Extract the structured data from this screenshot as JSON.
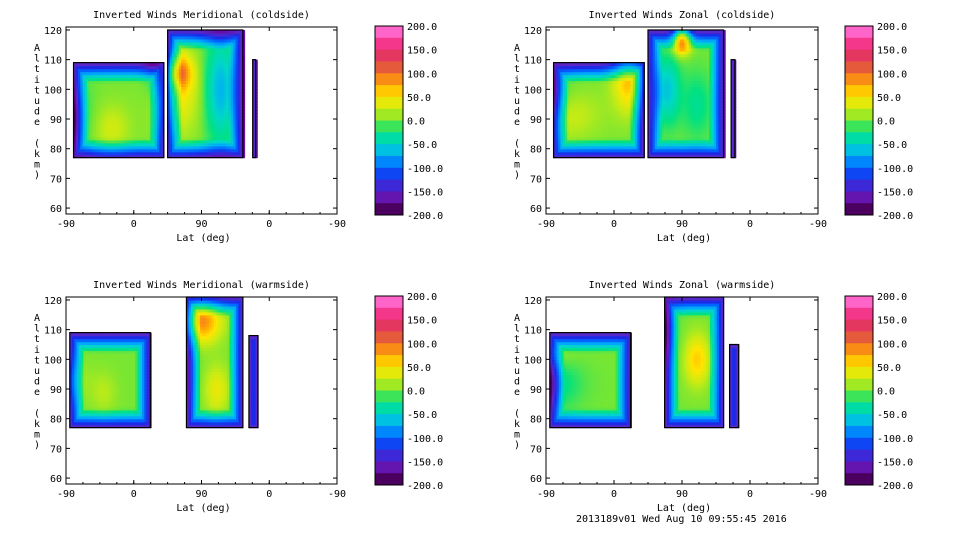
{
  "footer": "2013189v01 Wed Aug 10 09:55:45 2016",
  "chart_data": [
    {
      "type": "heatmap",
      "title": "Inverted Winds Meridional (coldside)",
      "xlabel": "Lat (deg)",
      "ylabel": "Altitude (km)",
      "x_ticks": [
        "-90",
        "0",
        "90",
        "0",
        "-90"
      ],
      "y_ticks": [
        60,
        70,
        80,
        90,
        100,
        110,
        120
      ],
      "ylim": [
        58,
        121
      ],
      "colorbar_ticks": [
        "200.0",
        "150.0",
        "100.0",
        "50.0",
        "0.0",
        "-50.0",
        "-100.0",
        "-150.0",
        "-200.0"
      ],
      "colorbar_range": [
        -200,
        200
      ],
      "blobs": [
        {
          "x": -60,
          "y": 97,
          "v": -20,
          "sx": 25,
          "sy": 9
        },
        {
          "x": 60,
          "y": 87,
          "v": 30,
          "sx": 18,
          "sy": 6
        },
        {
          "x": -10,
          "y": 90,
          "v": -60,
          "sx": 25,
          "sy": 8
        },
        {
          "x": 145,
          "y": 99,
          "v": 50,
          "sx": 22,
          "sy": 10
        },
        {
          "x": 150,
          "y": 106,
          "v": 80,
          "sx": 12,
          "sy": 4
        },
        {
          "x": 205,
          "y": 100,
          "v": -70,
          "sx": 14,
          "sy": 12
        },
        {
          "x": 120,
          "y": 108,
          "v": -40,
          "sx": 12,
          "sy": 8
        }
      ]
    },
    {
      "type": "heatmap",
      "title": "Inverted Winds Zonal (coldside)",
      "xlabel": "Lat (deg)",
      "ylabel": "Altitude (km)",
      "x_ticks": [
        "-90",
        "0",
        "90",
        "0",
        "-90"
      ],
      "y_ticks": [
        60,
        70,
        80,
        90,
        100,
        110,
        120
      ],
      "ylim": [
        58,
        121
      ],
      "colorbar_ticks": [
        "200.0",
        "150.0",
        "100.0",
        "50.0",
        "0.0",
        "-50.0",
        "-100.0",
        "-150.0",
        "-200.0"
      ],
      "colorbar_range": [
        -200,
        200
      ],
      "blobs": [
        {
          "x": -50,
          "y": 84,
          "v": 60,
          "sx": 30,
          "sy": 5
        },
        {
          "x": 30,
          "y": 92,
          "v": 30,
          "sx": 30,
          "sy": 6
        },
        {
          "x": -20,
          "y": 98,
          "v": -60,
          "sx": 30,
          "sy": 6
        },
        {
          "x": 110,
          "y": 104,
          "v": 70,
          "sx": 15,
          "sy": 8
        },
        {
          "x": 180,
          "y": 117,
          "v": 160,
          "sx": 8,
          "sy": 3
        },
        {
          "x": 160,
          "y": 100,
          "v": -60,
          "sx": 12,
          "sy": 8
        },
        {
          "x": 200,
          "y": 95,
          "v": -30,
          "sx": 14,
          "sy": 8
        }
      ]
    },
    {
      "type": "heatmap",
      "title": "Inverted Winds Meridional (warmside)",
      "xlabel": "Lat (deg)",
      "ylabel": "Altitude (km)",
      "x_ticks": [
        "-90",
        "0",
        "90",
        "0",
        "-90"
      ],
      "y_ticks": [
        60,
        70,
        80,
        90,
        100,
        110,
        120
      ],
      "ylim": [
        58,
        121
      ],
      "colorbar_ticks": [
        "200.0",
        "150.0",
        "100.0",
        "50.0",
        "0.0",
        "-50.0",
        "-100.0",
        "-150.0",
        "-200.0"
      ],
      "colorbar_range": [
        -200,
        200
      ],
      "blobs": [
        {
          "x": -10,
          "y": 93,
          "v": 40,
          "sx": 22,
          "sy": 5
        },
        {
          "x": 50,
          "y": 89,
          "v": 20,
          "sx": 12,
          "sy": 5
        },
        {
          "x": -60,
          "y": 95,
          "v": -50,
          "sx": 20,
          "sy": 8
        },
        {
          "x": 180,
          "y": 113,
          "v": 90,
          "sx": 18,
          "sy": 5
        },
        {
          "x": 150,
          "y": 95,
          "v": -20,
          "sx": 15,
          "sy": 8
        },
        {
          "x": 200,
          "y": 90,
          "v": 40,
          "sx": 12,
          "sy": 6
        }
      ]
    },
    {
      "type": "heatmap",
      "title": "Inverted Winds Zonal (warmside)",
      "xlabel": "Lat (deg)",
      "ylabel": "Altitude (km)",
      "x_ticks": [
        "-90",
        "0",
        "90",
        "0",
        "-90"
      ],
      "y_ticks": [
        60,
        70,
        80,
        90,
        100,
        110,
        120
      ],
      "ylim": [
        58,
        121
      ],
      "colorbar_ticks": [
        "200.0",
        "150.0",
        "100.0",
        "50.0",
        "0.0",
        "-50.0",
        "-100.0",
        "-150.0",
        "-200.0"
      ],
      "colorbar_range": [
        -200,
        200
      ],
      "blobs": [
        {
          "x": -40,
          "y": 101,
          "v": 50,
          "sx": 35,
          "sy": 3
        },
        {
          "x": -60,
          "y": 90,
          "v": -80,
          "sx": 20,
          "sy": 7
        },
        {
          "x": 0,
          "y": 92,
          "v": -40,
          "sx": 30,
          "sy": 6
        },
        {
          "x": 145,
          "y": 110,
          "v": -60,
          "sx": 15,
          "sy": 7
        },
        {
          "x": 200,
          "y": 100,
          "v": 60,
          "sx": 12,
          "sy": 6
        },
        {
          "x": 130,
          "y": 92,
          "v": -20,
          "sx": 15,
          "sy": 8
        }
      ]
    }
  ]
}
